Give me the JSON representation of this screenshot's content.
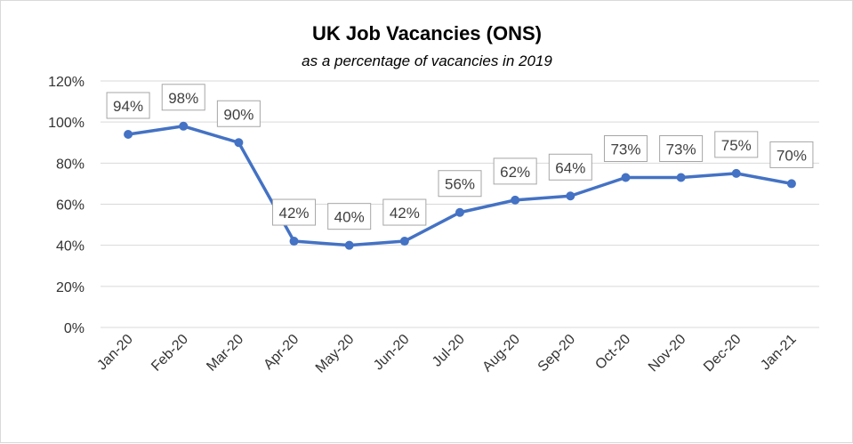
{
  "chart_data": {
    "type": "line",
    "title": "UK Job Vacancies (ONS)",
    "subtitle": "as a percentage of vacancies in 2019",
    "xlabel": "",
    "ylabel": "",
    "ylim": [
      0,
      120
    ],
    "yticks": [
      "0%",
      "20%",
      "40%",
      "60%",
      "80%",
      "100%",
      "120%"
    ],
    "grid": true,
    "legend": "none",
    "categories": [
      "Jan-20",
      "Feb-20",
      "Mar-20",
      "Apr-20",
      "May-20",
      "Jun-20",
      "Jul-20",
      "Aug-20",
      "Sep-20",
      "Oct-20",
      "Nov-20",
      "Dec-20",
      "Jan-21"
    ],
    "series": [
      {
        "values": [
          94,
          98,
          90,
          42,
          40,
          42,
          56,
          62,
          64,
          73,
          73,
          75,
          70
        ],
        "data_labels": [
          "94%",
          "98%",
          "90%",
          "42%",
          "40%",
          "42%",
          "56%",
          "62%",
          "64%",
          "73%",
          "73%",
          "75%",
          "70%"
        ],
        "color": "#4472c4"
      }
    ]
  }
}
